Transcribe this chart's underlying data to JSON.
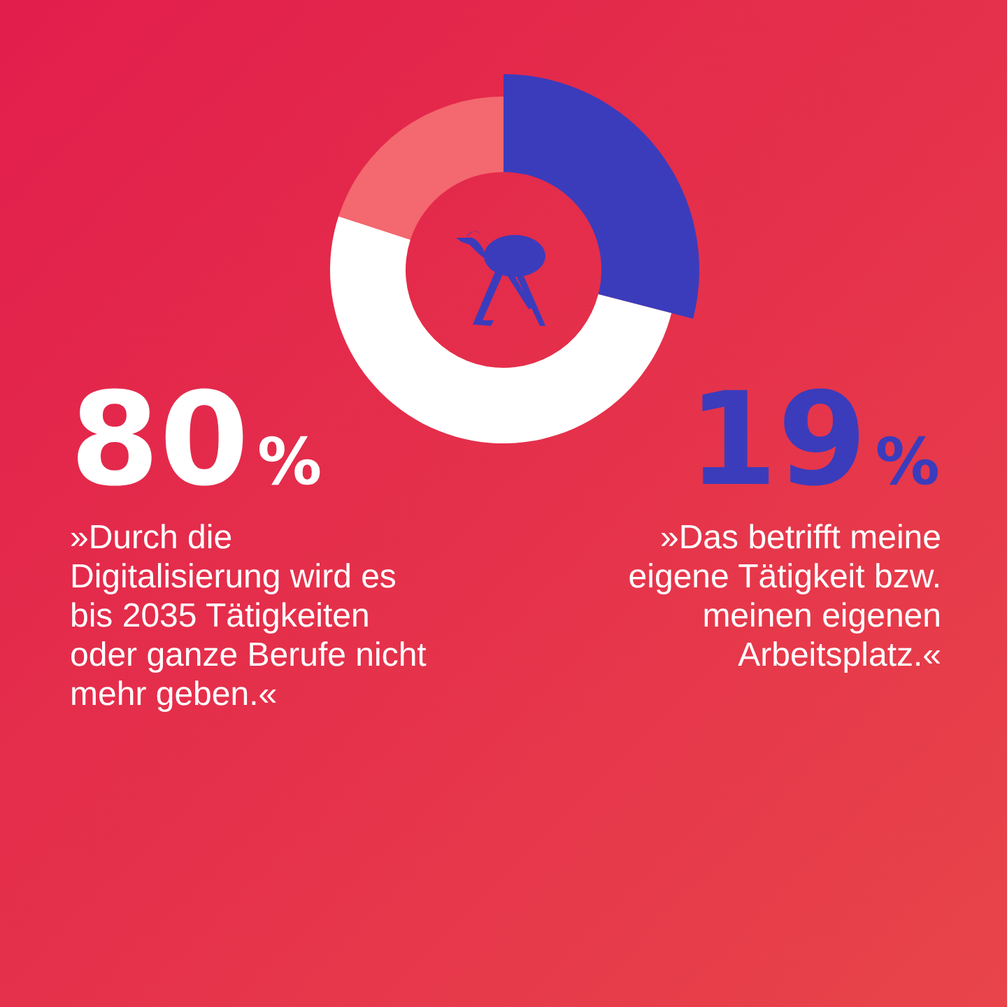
{
  "chart_data": {
    "type": "donut",
    "categories": [
      null,
      null,
      null
    ],
    "values": [
      29,
      51,
      20
    ],
    "colors": [
      "#3b3cbc",
      "#ffffff",
      "#f4686f"
    ],
    "annotations": [
      "80%",
      "»Durch die\nDigitalisierung wird es\nbis 2035 Tätigkeiten\noder ganze Berufe nicht\nmehr geben.«",
      "19%",
      "»Das betrifft meine\neigene Tätigkeit bzw.\nmeinen eigenen\nArbeitsplatz.«"
    ]
  }
}
